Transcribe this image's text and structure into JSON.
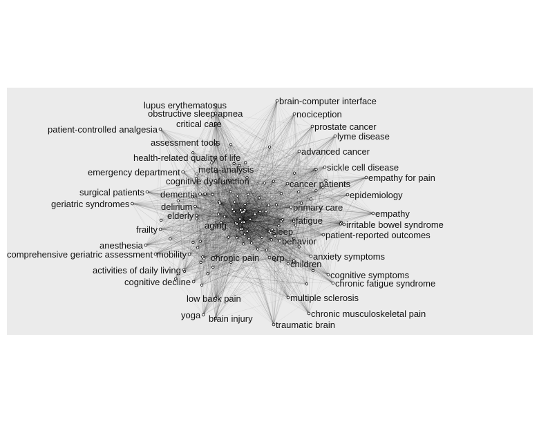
{
  "diagram": {
    "type": "keyword co-occurrence network",
    "colors": {
      "panel": "#ebebeb",
      "edge": "#000000",
      "node_fill": "#ffffff",
      "node_stroke": "#000000",
      "label": "#111111"
    },
    "labels": [
      "lupus erythematosus",
      "brain-computer interface",
      "obstructive sleep apnea",
      "nociception",
      "critical care",
      "prostate cancer",
      "patient-controlled analgesia",
      "lyme disease",
      "assessment tools",
      "advanced cancer",
      "health-related quality of life",
      "sickle cell disease",
      "meta-analysis",
      "emergency department",
      "empathy for pain",
      "cognitive dysfunction",
      "cancer patients",
      "dementia",
      "surgical patients",
      "epidemiology",
      "geriatric syndromes",
      "delirium",
      "primary care",
      "empathy",
      "elderly",
      "fatigue",
      "irritable bowel syndrome",
      "frailty",
      "aging",
      "sleep",
      "patient-reported outcomes",
      "anesthesia",
      "behavior",
      "comprehensive geriatric assessment",
      "mobility",
      "anxiety symptoms",
      "chronic pain",
      "erp",
      "children",
      "activities of daily living",
      "cognitive symptoms",
      "cognitive decline",
      "chronic fatigue syndrome",
      "low back pain",
      "multiple sclerosis",
      "chronic musculoskeletal pain",
      "yoga",
      "brain injury",
      "traumatic brain"
    ]
  }
}
